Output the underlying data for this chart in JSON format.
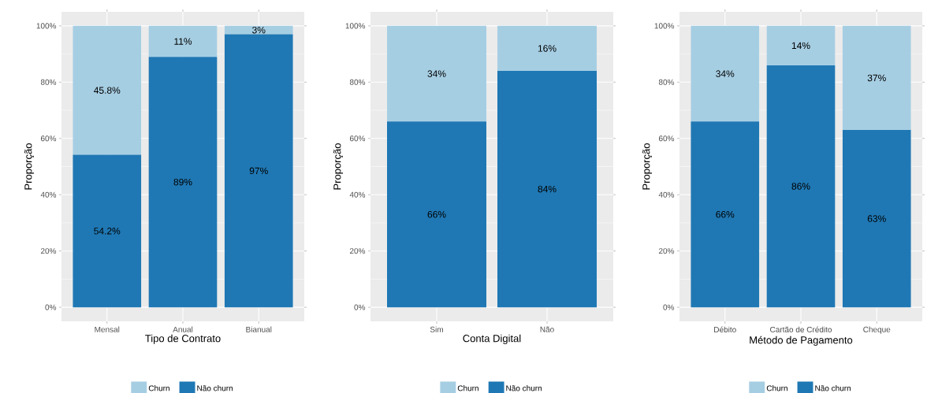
{
  "chart_data": [
    {
      "type": "bar",
      "stacked": true,
      "categories": [
        "Mensal",
        "Anual",
        "Bianual"
      ],
      "xlabel": "Tipo de Contrato",
      "ylabel": "Proporção",
      "ylim": [
        -5,
        105
      ],
      "yticks": [
        {
          "value": 0,
          "label": "0%"
        },
        {
          "value": 20,
          "label": "20%"
        },
        {
          "value": 40,
          "label": "40%"
        },
        {
          "value": 60,
          "label": "60%"
        },
        {
          "value": 80,
          "label": "80%"
        },
        {
          "value": 100,
          "label": "100%"
        }
      ],
      "grid": true,
      "legend": "bottom",
      "series": [
        {
          "name": "Não churn",
          "color": "#1f78b4",
          "values": [
            54.2,
            89,
            97
          ],
          "value_labels": [
            "54.2%",
            "89%",
            "97%"
          ]
        },
        {
          "name": "Churn",
          "color": "#a6cee3",
          "values": [
            45.8,
            11,
            3
          ],
          "value_labels": [
            "45.8%",
            "11%",
            "3%"
          ]
        }
      ]
    },
    {
      "type": "bar",
      "stacked": true,
      "categories": [
        "Sim",
        "Não"
      ],
      "xlabel": "Conta Digital",
      "ylabel": "Proporção",
      "ylim": [
        -5,
        105
      ],
      "yticks": [
        {
          "value": 0,
          "label": "0%"
        },
        {
          "value": 20,
          "label": "20%"
        },
        {
          "value": 40,
          "label": "40%"
        },
        {
          "value": 60,
          "label": "60%"
        },
        {
          "value": 80,
          "label": "80%"
        },
        {
          "value": 100,
          "label": "100%"
        }
      ],
      "grid": true,
      "legend": "bottom",
      "series": [
        {
          "name": "Não churn",
          "color": "#1f78b4",
          "values": [
            66,
            84
          ],
          "value_labels": [
            "66%",
            "84%"
          ]
        },
        {
          "name": "Churn",
          "color": "#a6cee3",
          "values": [
            34,
            16
          ],
          "value_labels": [
            "34%",
            "16%"
          ]
        }
      ]
    },
    {
      "type": "bar",
      "stacked": true,
      "categories": [
        "Débito",
        "Cartão de Crédito",
        "Cheque"
      ],
      "xlabel": "Método de Pagamento",
      "ylabel": "Proporção",
      "ylim": [
        -5,
        105
      ],
      "yticks": [
        {
          "value": 0,
          "label": "0%"
        },
        {
          "value": 20,
          "label": "20%"
        },
        {
          "value": 40,
          "label": "40%"
        },
        {
          "value": 60,
          "label": "60%"
        },
        {
          "value": 80,
          "label": "80%"
        },
        {
          "value": 100,
          "label": "100%"
        }
      ],
      "grid": true,
      "legend": "bottom",
      "series": [
        {
          "name": "Não churn",
          "color": "#1f78b4",
          "values": [
            66,
            86,
            63
          ],
          "value_labels": [
            "66%",
            "86%",
            "63%"
          ]
        },
        {
          "name": "Churn",
          "color": "#a6cee3",
          "values": [
            34,
            14,
            37
          ],
          "value_labels": [
            "34%",
            "14%",
            "37%"
          ]
        }
      ]
    }
  ]
}
